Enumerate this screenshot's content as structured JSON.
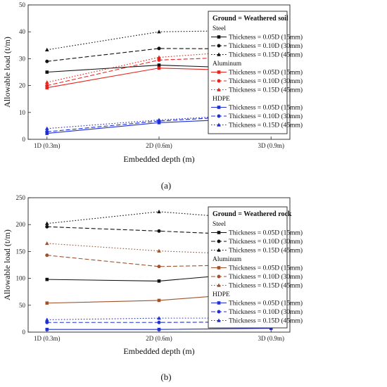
{
  "colors": {
    "steel": "#111111",
    "aluminum_a": "#e8221d",
    "aluminum_b": "#a0522d",
    "hdpe": "#1f2fd6",
    "group_aluminum_a": "#e8221d",
    "group_aluminum_b": "#d0281c",
    "group_hdpe": "#1f2fd6"
  },
  "chart_data": [
    {
      "type": "line",
      "panel_label": "(a)",
      "categories": [
        "1D (0.3m)",
        "2D (0.6m)",
        "3D (0.9m)"
      ],
      "xlabel": "Embedded depth (m)",
      "ylabel": "Allowable load (t/m)",
      "ylim": [
        0,
        50
      ],
      "yticks": [
        0,
        10,
        20,
        30,
        40,
        50
      ],
      "grid": false,
      "legend_position": "right",
      "legend_title": "Ground = Weathered soil",
      "groups": [
        {
          "name": "Steel",
          "color_key": "steel",
          "group_color_key": "steel",
          "series": [
            {
              "name": "Thickness = 0.05D (15mm)",
              "style": "solid",
              "marker": "square",
              "values": [
                25,
                27.6,
                26.2
              ]
            },
            {
              "name": "Thickness = 0.10D (30mm)",
              "style": "dashed",
              "marker": "circle",
              "values": [
                29,
                33.8,
                33.6
              ]
            },
            {
              "name": "Thickness = 0.15D (45mm)",
              "style": "dotted",
              "marker": "triangle",
              "values": [
                33.3,
                40,
                40.6
              ]
            }
          ]
        },
        {
          "name": "Aluminum",
          "color_key": "aluminum_a",
          "group_color_key": "group_aluminum_a",
          "series": [
            {
              "name": "Thickness = 0.05D (15mm)",
              "style": "solid",
              "marker": "square",
              "values": [
                19.2,
                26.5,
                25.3
              ]
            },
            {
              "name": "Thickness = 0.10D (30mm)",
              "style": "dashed",
              "marker": "circle",
              "values": [
                20,
                29.5,
                31
              ]
            },
            {
              "name": "Thickness = 0.15D (45mm)",
              "style": "dotted",
              "marker": "triangle",
              "values": [
                21.2,
                30.5,
                33.5
              ]
            }
          ]
        },
        {
          "name": "HDPE",
          "color_key": "hdpe",
          "group_color_key": "group_hdpe",
          "series": [
            {
              "name": "Thickness = 0.05D (15mm)",
              "style": "solid",
              "marker": "square",
              "values": [
                2.2,
                6.2,
                8
              ]
            },
            {
              "name": "Thickness = 0.10D (30mm)",
              "style": "dashed",
              "marker": "circle",
              "values": [
                2.8,
                6.8,
                9.2
              ]
            },
            {
              "name": "Thickness = 0.15D (45mm)",
              "style": "dotted",
              "marker": "triangle",
              "values": [
                4,
                7.2,
                9.5
              ]
            }
          ]
        }
      ]
    },
    {
      "type": "line",
      "panel_label": "(b)",
      "categories": [
        "1D (0.3m)",
        "2D (0.6m)",
        "3D (0.9m)"
      ],
      "xlabel": "Embedded depth (m)",
      "ylabel": "Allowable load (t/m)",
      "ylim": [
        0,
        250
      ],
      "yticks": [
        0,
        50,
        100,
        150,
        200,
        250
      ],
      "grid": false,
      "legend_position": "right",
      "legend_title": "Ground = Weathered rock",
      "groups": [
        {
          "name": "Steel",
          "color_key": "steel",
          "group_color_key": "steel",
          "series": [
            {
              "name": "Thickness = 0.05D (15mm)",
              "style": "solid",
              "marker": "square",
              "values": [
                98,
                95,
                113
              ]
            },
            {
              "name": "Thickness = 0.10D (30mm)",
              "style": "dashed",
              "marker": "circle",
              "values": [
                196,
                188,
                179
              ]
            },
            {
              "name": "Thickness = 0.15D (45mm)",
              "style": "dotted",
              "marker": "triangle",
              "values": [
                202,
                224,
                208
              ]
            }
          ]
        },
        {
          "name": "Aluminum",
          "color_key": "aluminum_b",
          "group_color_key": "group_aluminum_b",
          "series": [
            {
              "name": "Thickness = 0.05D (15mm)",
              "style": "solid",
              "marker": "square",
              "values": [
                54,
                59,
                75
              ]
            },
            {
              "name": "Thickness = 0.10D (30mm)",
              "style": "dashed",
              "marker": "circle",
              "values": [
                143,
                122,
                126
              ]
            },
            {
              "name": "Thickness = 0.15D (45mm)",
              "style": "dotted",
              "marker": "triangle",
              "values": [
                165,
                151,
                143
              ]
            }
          ]
        },
        {
          "name": "HDPE",
          "color_key": "hdpe",
          "group_color_key": "group_hdpe",
          "series": [
            {
              "name": "Thickness = 0.05D (15mm)",
              "style": "solid",
              "marker": "square",
              "values": [
                5,
                5,
                7
              ]
            },
            {
              "name": "Thickness = 0.10D (30mm)",
              "style": "dashed",
              "marker": "circle",
              "values": [
                18,
                18,
                19
              ]
            },
            {
              "name": "Thickness = 0.15D (45mm)",
              "style": "dotted",
              "marker": "triangle",
              "values": [
                23,
                26,
                26
              ]
            }
          ]
        }
      ]
    }
  ]
}
